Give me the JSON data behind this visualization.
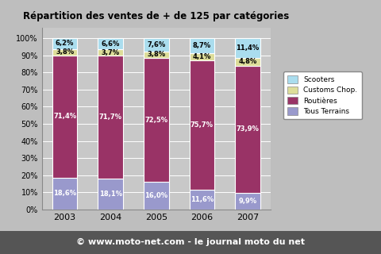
{
  "title": "Répartition des ventes de + de 125 par catégories",
  "years": [
    "2003",
    "2004",
    "2005",
    "2006",
    "2007"
  ],
  "stack_order": [
    "Tous Terrains",
    "Routières",
    "Customs Chop.",
    "Scooters"
  ],
  "values": {
    "Tous Terrains": [
      18.6,
      18.1,
      16.0,
      11.6,
      9.9
    ],
    "Routières": [
      71.4,
      71.7,
      72.5,
      75.7,
      73.9
    ],
    "Customs Chop.": [
      3.8,
      3.7,
      3.8,
      4.1,
      4.8
    ],
    "Scooters": [
      6.2,
      6.6,
      7.6,
      8.7,
      11.4
    ]
  },
  "label_colors": {
    "Tous Terrains": "white",
    "Routières": "white",
    "Customs Chop.": "black",
    "Scooters": "black"
  },
  "colors": {
    "Tous Terrains": "#9999CC",
    "Routières": "#993366",
    "Customs Chop.": "#DDDD99",
    "Scooters": "#AADDEE"
  },
  "bar_width": 0.55,
  "yticks": [
    0,
    10,
    20,
    30,
    40,
    50,
    60,
    70,
    80,
    90,
    100
  ],
  "bg_color": "#BEBEBE",
  "plot_bg_color": "#C8C8C8",
  "footer_text": "© www.moto-net.com - le journal moto du net",
  "footer_bg": "#555555",
  "footer_color": "#FFFFFF",
  "legend_labels": [
    "Scooters",
    "Customs Chop.",
    "Routières",
    "Tous Terrains"
  ],
  "legend_colors": [
    "#AADDEE",
    "#DDDD99",
    "#993366",
    "#9999CC"
  ]
}
